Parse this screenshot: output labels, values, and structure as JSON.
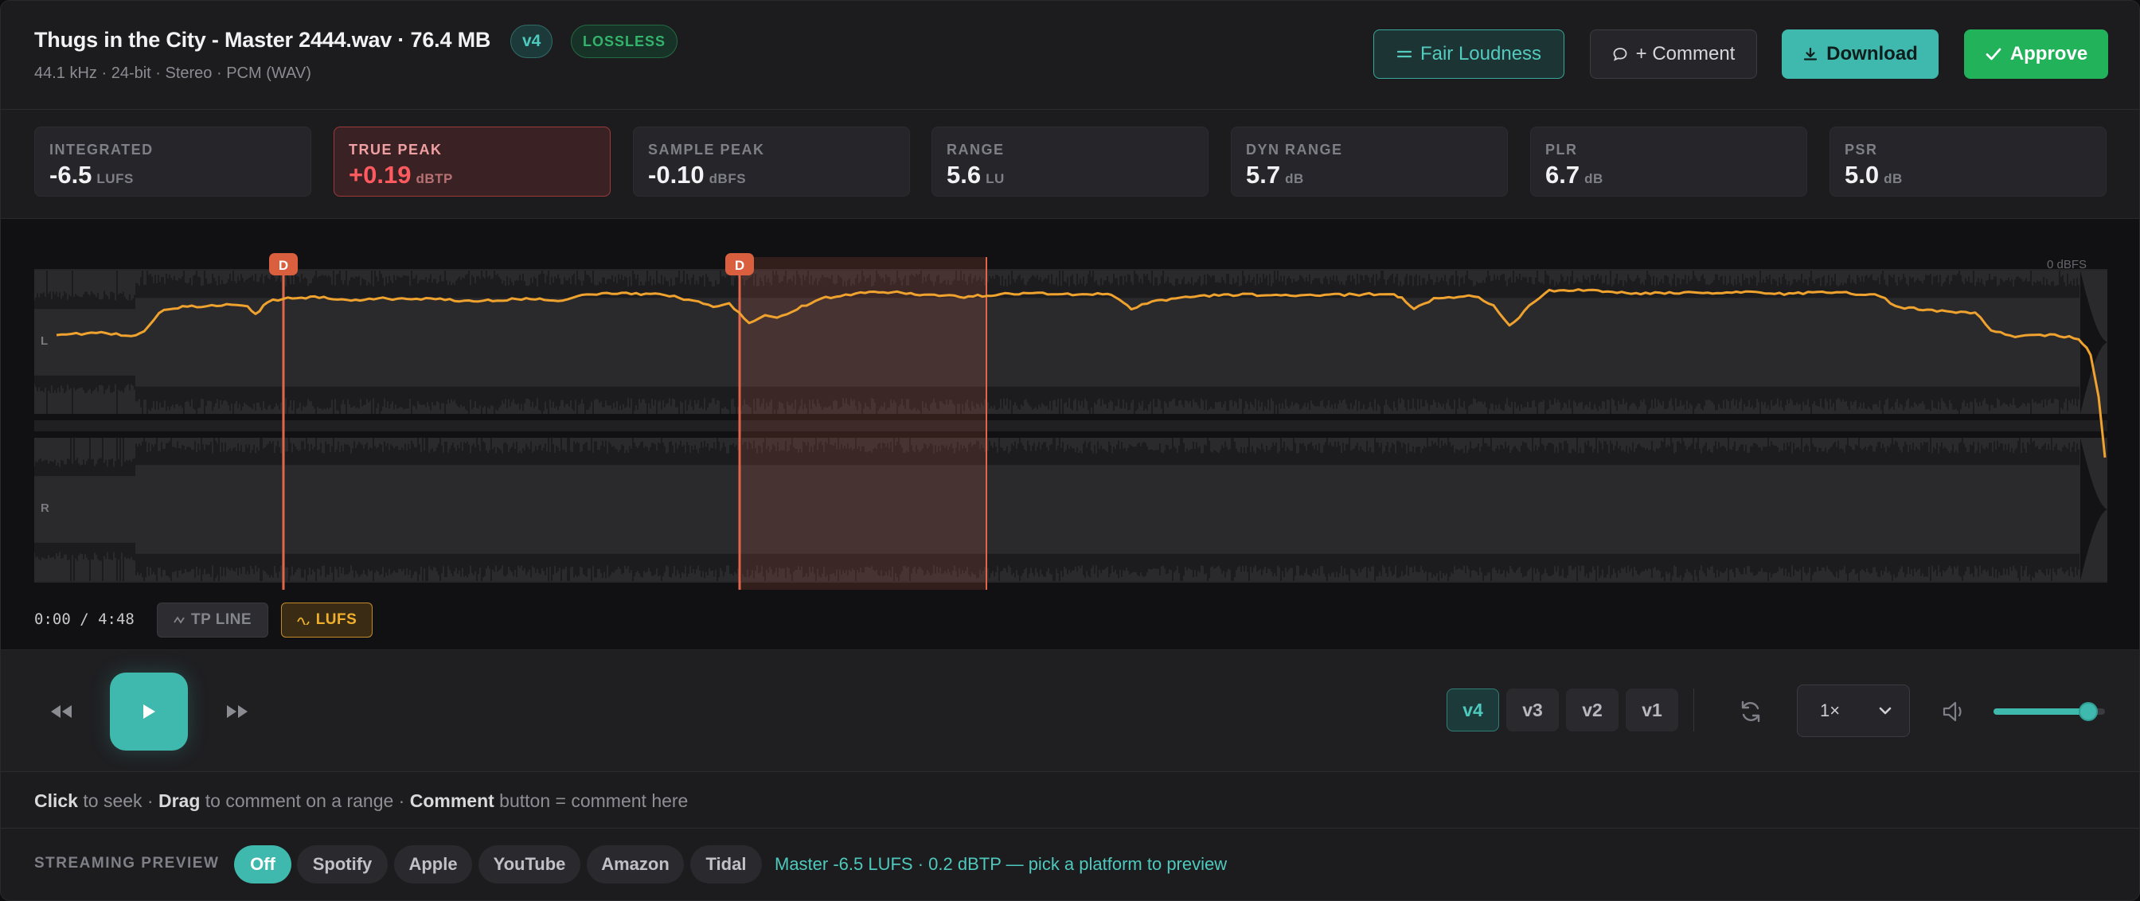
{
  "header": {
    "title": "Thugs in the City - Master 2444.wav · 76.4 MB",
    "version_badge": "v4",
    "lossless_badge": "LOSSLESS",
    "subtitle": "44.1 kHz · 24-bit · Stereo · PCM (WAV)",
    "buttons": {
      "fair_loudness": "Fair Loudness",
      "comment": "+ Comment",
      "download": "Download",
      "approve": "Approve"
    }
  },
  "metrics": [
    {
      "label": "INTEGRATED",
      "value": "-6.5",
      "unit": "LUFS",
      "warn": false
    },
    {
      "label": "TRUE PEAK",
      "value": "+0.19",
      "unit": "dBTP",
      "warn": true
    },
    {
      "label": "SAMPLE PEAK",
      "value": "-0.10",
      "unit": "dBFS",
      "warn": false
    },
    {
      "label": "RANGE",
      "value": "5.6",
      "unit": "LU",
      "warn": false
    },
    {
      "label": "DYN RANGE",
      "value": "5.7",
      "unit": "dB",
      "warn": false
    },
    {
      "label": "PLR",
      "value": "6.7",
      "unit": "dB",
      "warn": false
    },
    {
      "label": "PSR",
      "value": "5.0",
      "unit": "dB",
      "warn": false
    }
  ],
  "waveform": {
    "ceiling_label": "0 dBFS",
    "channel_left": "L",
    "channel_right": "R",
    "marker_label": "D",
    "time_readout": "0:00 / 4:48",
    "overlay_tp": "TP LINE",
    "overlay_lufs": "LUFS",
    "colors": {
      "lufs_line": "#f0a22e",
      "marker": "#e0664a",
      "waveform": "#3c3c40"
    }
  },
  "transport": {
    "versions": [
      "v4",
      "v3",
      "v2",
      "v1"
    ],
    "active_version": "v4",
    "speed": "1×",
    "volume": 0.85
  },
  "hint": {
    "click": "Click",
    "click_text": " to seek · ",
    "drag": "Drag",
    "drag_text": " to comment on a range · ",
    "comment": "Comment",
    "comment_text": " button = comment here"
  },
  "streaming": {
    "label": "STREAMING PREVIEW",
    "platforms": [
      "Off",
      "Spotify",
      "Apple",
      "YouTube",
      "Amazon",
      "Tidal"
    ],
    "active": "Off",
    "status": "Master -6.5 LUFS · 0.2 dBTP — pick a platform to preview"
  }
}
